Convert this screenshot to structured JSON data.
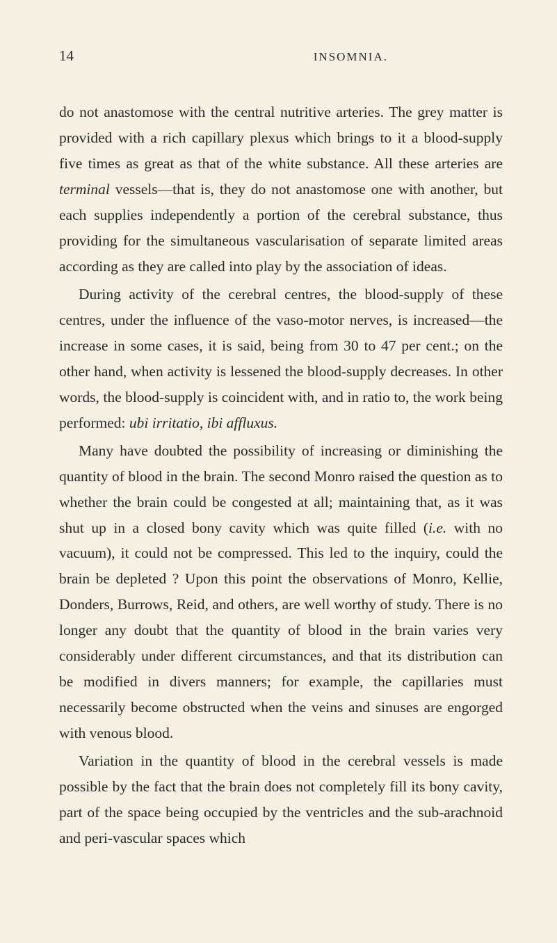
{
  "page": {
    "number": "14",
    "running_head": "INSOMNIA.",
    "background_color": "#f5f0e1",
    "text_color": "#2a2a2a",
    "font_family": "Times New Roman, Georgia, serif",
    "body_fontsize": 21.5,
    "line_height": 1.72
  },
  "paragraphs": [
    {
      "indented": false,
      "segments": [
        {
          "text": "do not anastomose with the central nutritive arteries. The grey matter is provided with a rich capillary plexus which brings to it a blood-supply five times as great as that of the white substance. All these arteries are ",
          "italic": false
        },
        {
          "text": "terminal",
          "italic": true
        },
        {
          "text": " vessels—that is, they do not anastomose one with another, but each supplies independently a portion of the cerebral substance, thus providing for the simultaneous vascularisation of separate limited areas according as they are called into play by the association of ideas.",
          "italic": false
        }
      ]
    },
    {
      "indented": true,
      "segments": [
        {
          "text": "During activity of the cerebral centres, the blood-supply of these centres, under the influence of the vaso-motor nerves, is increased—the increase in some cases, it is said, being from 30 to 47 per cent.; on the other hand, when activity is lessened the blood-supply decreases. In other words, the blood-supply is coincident with, and in ratio to, the work being performed: ",
          "italic": false
        },
        {
          "text": "ubi irritatio, ibi affluxus.",
          "italic": true
        }
      ]
    },
    {
      "indented": true,
      "segments": [
        {
          "text": "Many have doubted the possibility of increasing or diminishing the quantity of blood in the brain. The second Monro raised the question as to whether the brain could be congested at all; maintaining that, as it was shut up in a closed bony cavity which was quite filled (",
          "italic": false
        },
        {
          "text": "i.e.",
          "italic": true
        },
        {
          "text": " with no vacuum), it could not be compressed. This led to the inquiry, could the brain be depleted ? Upon this point the observations of Monro, Kellie, Donders, Burrows, Reid, and others, are well worthy of study. There is no longer any doubt that the quantity of blood in the brain varies very considerably under different circumstances, and that its distribution can be modified in divers manners; for example, the capillaries must necessarily become obstructed when the veins and sinuses are engorged with venous blood.",
          "italic": false
        }
      ]
    },
    {
      "indented": true,
      "segments": [
        {
          "text": "Variation in the quantity of blood in the cerebral vessels is made possible by the fact that the brain does not completely fill its bony cavity, part of the space being occupied by the ventricles and the sub-arachnoid and peri-vascular spaces which",
          "italic": false
        }
      ]
    }
  ]
}
